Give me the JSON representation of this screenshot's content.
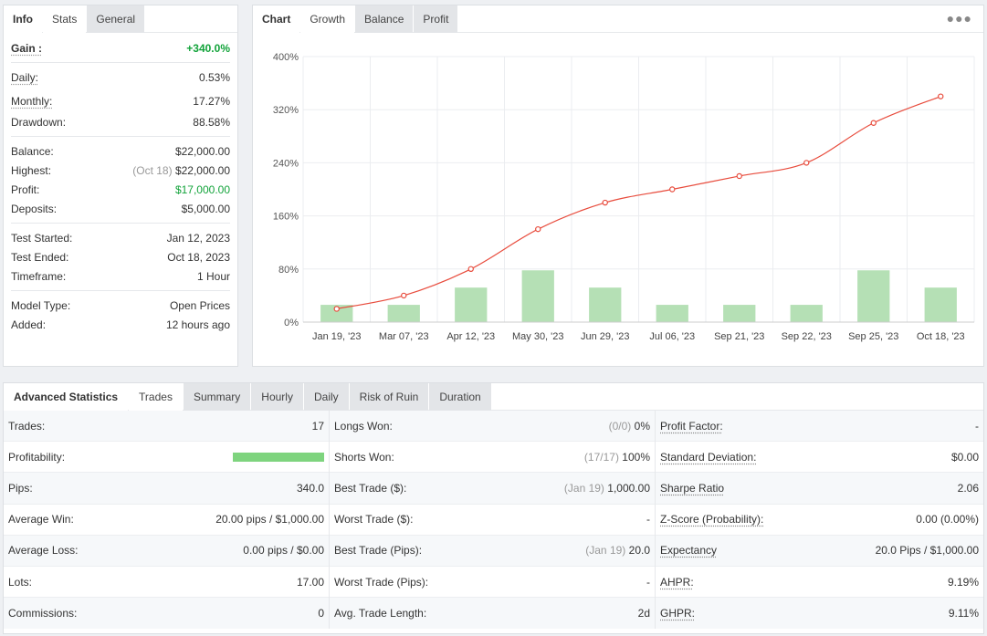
{
  "info_panel": {
    "tabs": [
      "Info",
      "Stats",
      "General"
    ],
    "gain": {
      "label": "Gain :",
      "value": "+340.0%"
    },
    "group1": [
      {
        "label": "Daily:",
        "value": "0.53%"
      },
      {
        "label": "Monthly:",
        "value": "17.27%"
      },
      {
        "label": "Drawdown:",
        "value": "88.58%"
      }
    ],
    "balance": {
      "label": "Balance:",
      "value": "$22,000.00"
    },
    "highest": {
      "label": "Highest:",
      "date": "(Oct 18)",
      "value": "$22,000.00"
    },
    "profit": {
      "label": "Profit:",
      "value": "$17,000.00"
    },
    "deposits": {
      "label": "Deposits:",
      "value": "$5,000.00"
    },
    "group3": [
      {
        "label": "Test Started:",
        "value": "Jan 12, 2023"
      },
      {
        "label": "Test Ended:",
        "value": "Oct 18, 2023"
      },
      {
        "label": "Timeframe:",
        "value": "1 Hour"
      }
    ],
    "group4": [
      {
        "label": "Model Type:",
        "value": "Open Prices"
      },
      {
        "label": "Added:",
        "value": "12 hours ago"
      }
    ]
  },
  "chart_panel": {
    "tabs": [
      "Chart",
      "Growth",
      "Balance",
      "Profit"
    ],
    "menu_icon": "more-dots-icon"
  },
  "chart_data": {
    "type": "line",
    "categories": [
      "Jan 19, '23",
      "Mar 07, '23",
      "Apr 12, '23",
      "May 30, '23",
      "Jun 29, '23",
      "Jul 06, '23",
      "Sep 21, '23",
      "Sep 22, '23",
      "Sep 25, '23",
      "Oct 18, '23"
    ],
    "series": [
      {
        "type": "line",
        "values": [
          20,
          40,
          80,
          140,
          180,
          200,
          220,
          240,
          300,
          340
        ]
      },
      {
        "type": "bar",
        "values": [
          26,
          26,
          52,
          78,
          52,
          26,
          26,
          26,
          78,
          52
        ]
      }
    ],
    "yticks": [
      "0%",
      "80%",
      "160%",
      "240%",
      "320%",
      "400%"
    ],
    "ylim": [
      0,
      400
    ],
    "grid": true,
    "colors": {
      "line": "#e84c3d",
      "bar": "#b5e0b5"
    }
  },
  "advanced": {
    "tabs": [
      "Advanced Statistics",
      "Trades",
      "Summary",
      "Hourly",
      "Daily",
      "Risk of Ruin",
      "Duration"
    ],
    "col1": [
      {
        "label": "Trades:",
        "value": "17"
      },
      {
        "label": "Profitability:",
        "value": ""
      },
      {
        "label": "Pips:",
        "value": "340.0"
      },
      {
        "label": "Average Win:",
        "value": "20.00 pips / $1,000.00"
      },
      {
        "label": "Average Loss:",
        "value": "0.00 pips / $0.00"
      },
      {
        "label": "Lots:",
        "value": "17.00"
      },
      {
        "label": "Commissions:",
        "value": "0"
      }
    ],
    "profitability_fraction": 1.0,
    "col2": [
      {
        "label": "Longs Won:",
        "note": "(0/0)",
        "value": "0%"
      },
      {
        "label": "Shorts Won:",
        "note": "(17/17)",
        "value": "100%"
      },
      {
        "label": "Best Trade ($):",
        "note": "(Jan 19)",
        "value": "1,000.00"
      },
      {
        "label": "Worst Trade ($):",
        "note": "",
        "value": "-"
      },
      {
        "label": "Best Trade (Pips):",
        "note": "(Jan 19)",
        "value": "20.0"
      },
      {
        "label": "Worst Trade (Pips):",
        "note": "",
        "value": "-"
      },
      {
        "label": "Avg. Trade Length:",
        "note": "",
        "value": "2d"
      }
    ],
    "col3": [
      {
        "label": "Profit Factor:",
        "value": "-"
      },
      {
        "label": "Standard Deviation:",
        "value": "$0.00"
      },
      {
        "label": "Sharpe Ratio",
        "value": "2.06"
      },
      {
        "label": "Z-Score (Probability):",
        "value": "0.00 (0.00%)"
      },
      {
        "label": "Expectancy",
        "value": "20.0 Pips / $1,000.00"
      },
      {
        "label": "AHPR:",
        "value": "9.19%"
      },
      {
        "label": "GHPR:",
        "value": "9.11%"
      }
    ]
  }
}
